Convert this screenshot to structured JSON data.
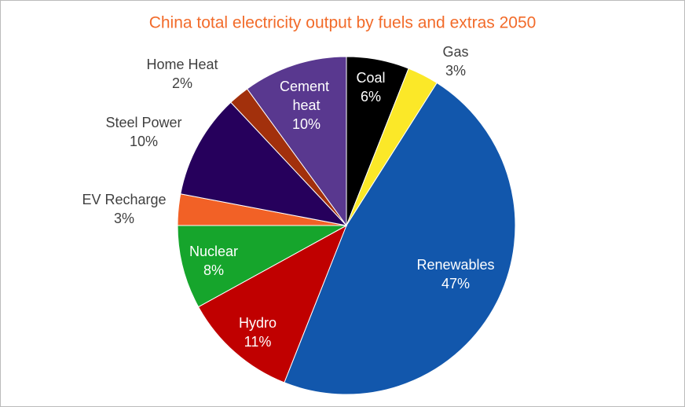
{
  "chart_data": {
    "type": "pie",
    "title": "China total electricity output by fuels and extras 2050",
    "categories": [
      "Coal",
      "Gas",
      "Renewables",
      "Hydro",
      "Nuclear",
      "EV Recharge",
      "Steel Power",
      "Home Heat",
      "Cement heat"
    ],
    "values": [
      6,
      3,
      47,
      11,
      8,
      3,
      10,
      2,
      10
    ],
    "value_labels": [
      "6%",
      "3%",
      "47%",
      "11%",
      "8%",
      "3%",
      "10%",
      "2%",
      "10%"
    ],
    "colors": [
      "#000000",
      "#fbe828",
      "#1257ac",
      "#c00000",
      "#16a52c",
      "#f26126",
      "#26005c",
      "#a2300c",
      "#59388f"
    ]
  }
}
